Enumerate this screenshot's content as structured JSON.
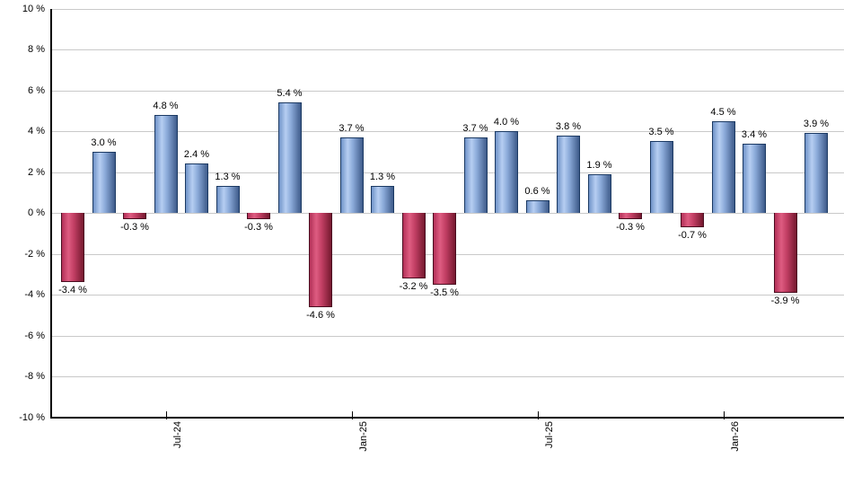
{
  "chart_data": {
    "type": "bar",
    "title": "",
    "xlabel": "",
    "ylabel": "",
    "unit": "%",
    "ylim": [
      -10,
      10
    ],
    "ytick_step": 2,
    "grid": true,
    "legend": false,
    "bars": [
      {
        "value": -3.4,
        "label": "-3.4 %"
      },
      {
        "value": 3.0,
        "label": "3.0 %"
      },
      {
        "value": -0.3,
        "label": "-0.3 %"
      },
      {
        "value": 4.8,
        "label": "4.8 %"
      },
      {
        "value": 2.4,
        "label": "2.4 %"
      },
      {
        "value": 1.3,
        "label": "1.3 %"
      },
      {
        "value": -0.3,
        "label": "-0.3 %"
      },
      {
        "value": 5.4,
        "label": "5.4 %"
      },
      {
        "value": -4.6,
        "label": "-4.6 %"
      },
      {
        "value": 3.7,
        "label": "3.7 %"
      },
      {
        "value": 1.3,
        "label": "1.3 %"
      },
      {
        "value": -3.2,
        "label": "-3.2 %"
      },
      {
        "value": -3.5,
        "label": "-3.5 %"
      },
      {
        "value": 3.7,
        "label": "3.7 %"
      },
      {
        "value": 4.0,
        "label": "4.0 %"
      },
      {
        "value": 0.6,
        "label": "0.6 %"
      },
      {
        "value": 3.8,
        "label": "3.8 %"
      },
      {
        "value": 1.9,
        "label": "1.9 %"
      },
      {
        "value": -0.3,
        "label": "-0.3 %"
      },
      {
        "value": 3.5,
        "label": "3.5 %"
      },
      {
        "value": -0.7,
        "label": "-0.7 %"
      },
      {
        "value": 4.5,
        "label": "4.5 %"
      },
      {
        "value": 3.4,
        "label": "3.4 %"
      },
      {
        "value": -3.9,
        "label": "-3.9 %"
      },
      {
        "value": 3.9,
        "label": "3.9 %"
      }
    ],
    "x_ticks": [
      {
        "label": "Jul-24",
        "bar_index": 3
      },
      {
        "label": "Jan-25",
        "bar_index": 9
      },
      {
        "label": "Jul-25",
        "bar_index": 15
      },
      {
        "label": "Jan-26",
        "bar_index": 21
      }
    ],
    "y_ticks": [
      {
        "label": "10 %",
        "value": 10
      },
      {
        "label": "8 %",
        "value": 8
      },
      {
        "label": "6 %",
        "value": 6
      },
      {
        "label": "4 %",
        "value": 4
      },
      {
        "label": "2 %",
        "value": 2
      },
      {
        "label": "0 %",
        "value": 0
      },
      {
        "label": "-2 %",
        "value": -2
      },
      {
        "label": "-4 %",
        "value": -4
      },
      {
        "label": "-6 %",
        "value": -6
      },
      {
        "label": "-8 %",
        "value": -8
      },
      {
        "label": "-10 %",
        "value": -10
      }
    ],
    "colors": {
      "positive_bar": "#7aa0d8",
      "negative_bar": "#c84b6e",
      "gridline": "#c9c9c9",
      "axis": "#000000",
      "text": "#000000",
      "background": "#ffffff"
    }
  }
}
